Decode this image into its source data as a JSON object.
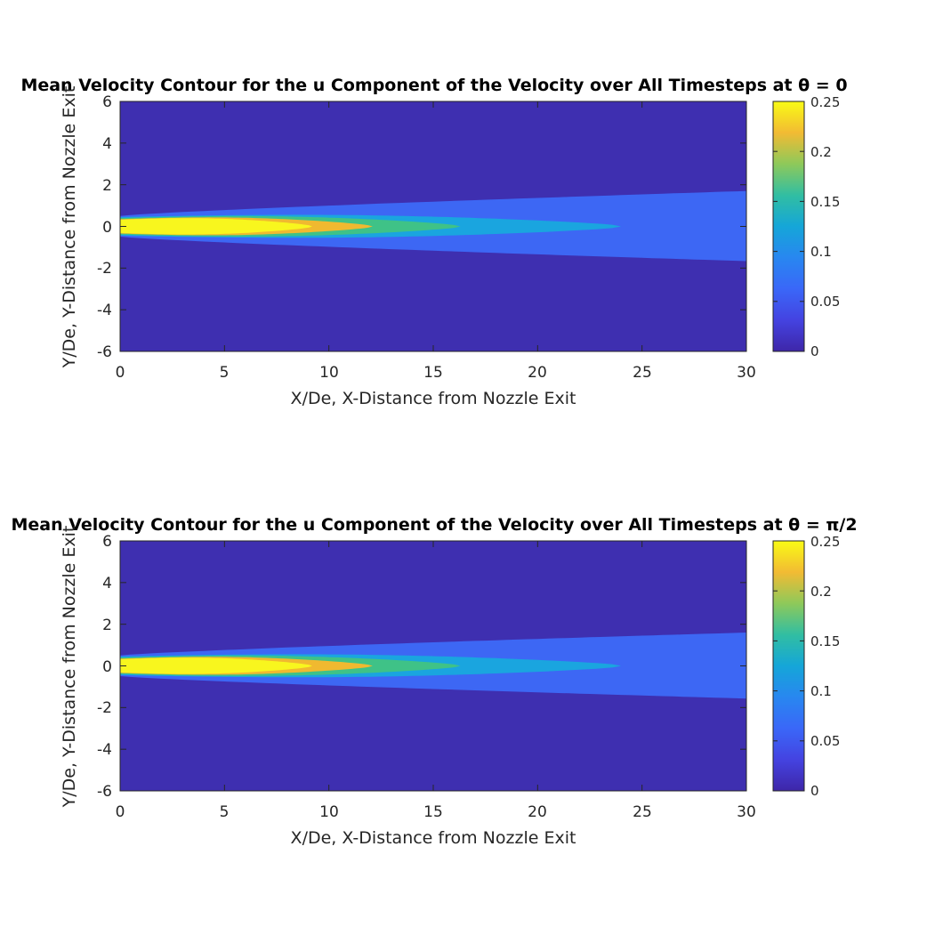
{
  "chart_data": [
    {
      "type": "heatmap",
      "title": "Mean Velocity Contour for the u Component of the Velocity over All Timesteps at θ = 0",
      "xlabel": "X/De, X-Distance from Nozzle Exit",
      "ylabel": "Y/De, Y-Distance from Nozzle Exit",
      "xlim": [
        0,
        30
      ],
      "ylim": [
        -6,
        6
      ],
      "x_ticks": [
        "0",
        "5",
        "10",
        "15",
        "20",
        "25",
        "30"
      ],
      "y_ticks": [
        "6",
        "4",
        "2",
        "0",
        "-2",
        "-4",
        "-6"
      ],
      "colorbar": {
        "range": [
          0,
          0.25
        ],
        "ticks": [
          "0.25",
          "0.2",
          "0.15",
          "0.1",
          "0.05",
          "0"
        ],
        "colormap": "parula"
      },
      "contour_levels": [
        {
          "value": 0.05,
          "x_end": 30,
          "half_width_start": 0.5,
          "half_width_end": 1.7,
          "color": "#3d67f4"
        },
        {
          "value": 0.1,
          "x_end": 24,
          "half_width_start": 0.45,
          "half_width_end": 0.0,
          "color": "#1aa5df"
        },
        {
          "value": 0.15,
          "x_end": 16.3,
          "half_width_start": 0.4,
          "half_width_end": 0.0,
          "color": "#3fc287"
        },
        {
          "value": 0.2,
          "x_end": 12.1,
          "half_width_start": 0.35,
          "half_width_end": 0.0,
          "color": "#f0b930"
        },
        {
          "value": 0.25,
          "x_end": 9.2,
          "half_width_start": 0.32,
          "half_width_end": 0.0,
          "color": "#f8f61e"
        }
      ]
    },
    {
      "type": "heatmap",
      "title": "Mean Velocity Contour for the u Component of the Velocity over All Timesteps at θ = π/2",
      "xlabel": "X/De, X-Distance from Nozzle Exit",
      "ylabel": "Y/De, Y-Distance from Nozzle Exit",
      "xlim": [
        0,
        30
      ],
      "ylim": [
        -6,
        6
      ],
      "x_ticks": [
        "0",
        "5",
        "10",
        "15",
        "20",
        "25",
        "30"
      ],
      "y_ticks": [
        "6",
        "4",
        "2",
        "0",
        "-2",
        "-4",
        "-6"
      ],
      "colorbar": {
        "range": [
          0,
          0.25
        ],
        "ticks": [
          "0.25",
          "0.2",
          "0.15",
          "0.1",
          "0.05",
          "0"
        ],
        "colormap": "parula"
      },
      "contour_levels": [
        {
          "value": 0.05,
          "x_end": 30,
          "half_width_start": 0.5,
          "half_width_end": 1.6,
          "color": "#3d67f4"
        },
        {
          "value": 0.1,
          "x_end": 24,
          "half_width_start": 0.45,
          "half_width_end": 0.0,
          "color": "#1aa5df"
        },
        {
          "value": 0.15,
          "x_end": 16.3,
          "half_width_start": 0.4,
          "half_width_end": 0.0,
          "color": "#3fc287"
        },
        {
          "value": 0.2,
          "x_end": 12.1,
          "half_width_start": 0.35,
          "half_width_end": 0.0,
          "color": "#f0b930"
        },
        {
          "value": 0.25,
          "x_end": 9.2,
          "half_width_start": 0.32,
          "half_width_end": 0.0,
          "color": "#f8f61e"
        }
      ]
    }
  ],
  "colors": {
    "background_field": "#3e2fb0",
    "axis": "#262626"
  }
}
